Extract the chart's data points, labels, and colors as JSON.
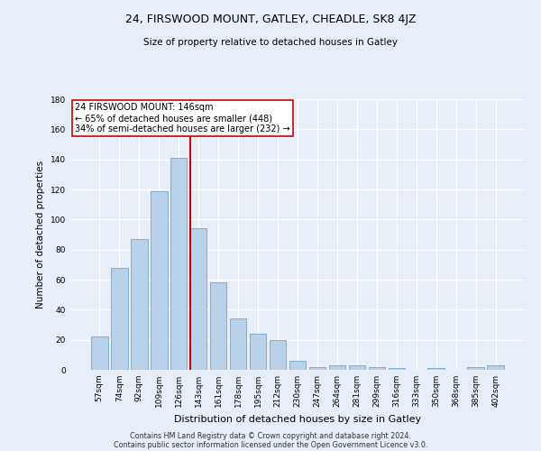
{
  "title1": "24, FIRSWOOD MOUNT, GATLEY, CHEADLE, SK8 4JZ",
  "title2": "Size of property relative to detached houses in Gatley",
  "xlabel": "Distribution of detached houses by size in Gatley",
  "ylabel": "Number of detached properties",
  "categories": [
    "57sqm",
    "74sqm",
    "92sqm",
    "109sqm",
    "126sqm",
    "143sqm",
    "161sqm",
    "178sqm",
    "195sqm",
    "212sqm",
    "230sqm",
    "247sqm",
    "264sqm",
    "281sqm",
    "299sqm",
    "316sqm",
    "333sqm",
    "350sqm",
    "368sqm",
    "385sqm",
    "402sqm"
  ],
  "values": [
    22,
    68,
    87,
    119,
    141,
    94,
    58,
    34,
    24,
    20,
    6,
    2,
    3,
    3,
    2,
    1,
    0,
    1,
    0,
    2,
    3
  ],
  "bar_color": "#b8d0e8",
  "bar_edge_color": "#6aaad4",
  "highlight_index": 5,
  "highlight_color": "#cc0000",
  "annotation_lines": [
    "24 FIRSWOOD MOUNT: 146sqm",
    "← 65% of detached houses are smaller (448)",
    "34% of semi-detached houses are larger (232) →"
  ],
  "annotation_box_color": "#ffffff",
  "annotation_box_edge": "#cc0000",
  "ylim": [
    0,
    180
  ],
  "yticks": [
    0,
    20,
    40,
    60,
    80,
    100,
    120,
    140,
    160,
    180
  ],
  "footer1": "Contains HM Land Registry data © Crown copyright and database right 2024.",
  "footer2": "Contains public sector information licensed under the Open Government Licence v3.0.",
  "bg_color": "#e8eef8",
  "plot_bg_color": "#e8eef8"
}
